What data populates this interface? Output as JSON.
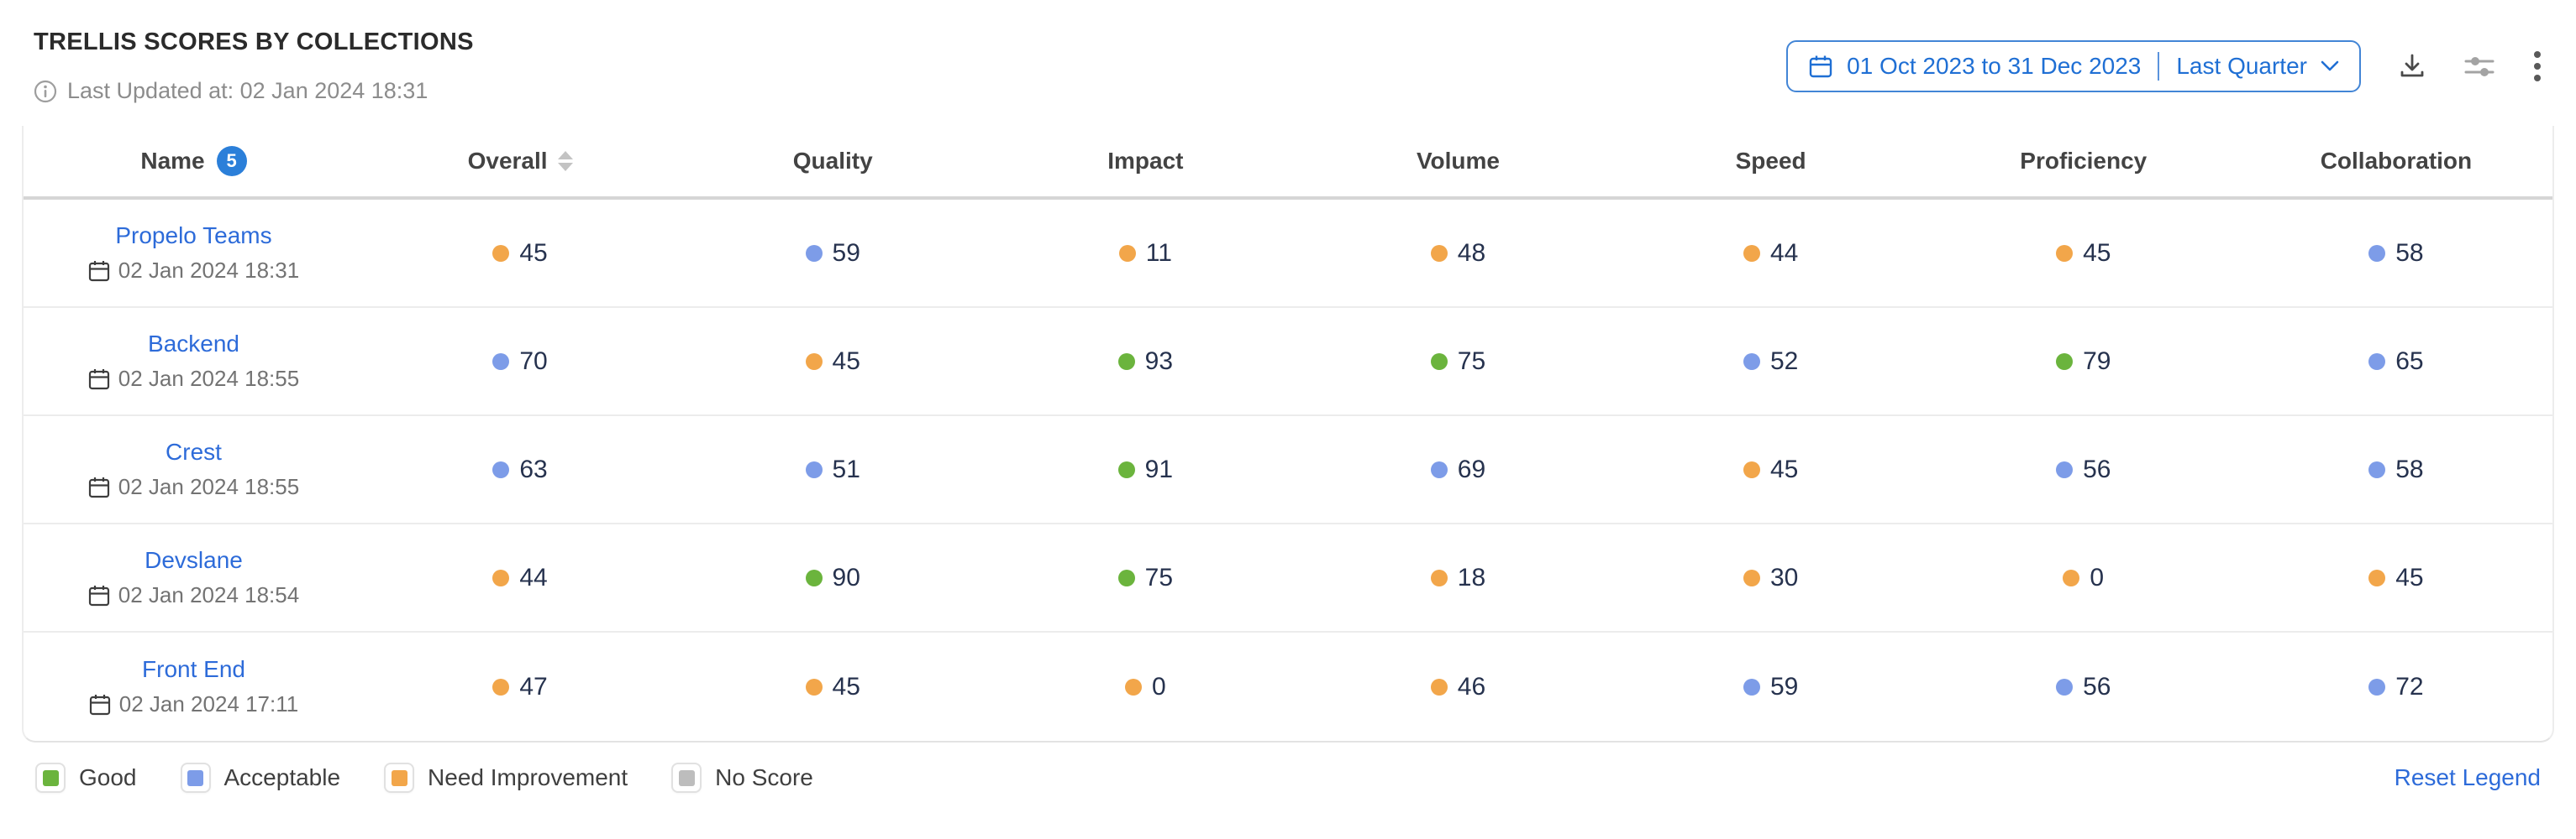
{
  "header": {
    "title": "TRELLIS SCORES BY COLLECTIONS",
    "last_updated": "Last Updated at: 02 Jan 2024 18:31",
    "date_filter": {
      "range": "01 Oct 2023 to 31 Dec 2023",
      "preset": "Last Quarter"
    },
    "icons": {
      "info": "info-icon",
      "calendar": "calendar-icon",
      "download": "download-icon",
      "filter": "sliders-icon",
      "more": "kebab-menu-icon"
    }
  },
  "table": {
    "name_column": {
      "label": "Name",
      "badge": "5"
    },
    "metric_columns": [
      {
        "label": "Overall",
        "sortable": true
      },
      {
        "label": "Quality"
      },
      {
        "label": "Impact"
      },
      {
        "label": "Volume"
      },
      {
        "label": "Speed"
      },
      {
        "label": "Proficiency"
      },
      {
        "label": "Collaboration"
      }
    ],
    "rows": [
      {
        "name": "Propelo Teams",
        "date": "02 Jan 2024 18:31",
        "scores": [
          {
            "value": 45,
            "level": "need_improvement"
          },
          {
            "value": 59,
            "level": "acceptable"
          },
          {
            "value": 11,
            "level": "need_improvement"
          },
          {
            "value": 48,
            "level": "need_improvement"
          },
          {
            "value": 44,
            "level": "need_improvement"
          },
          {
            "value": 45,
            "level": "need_improvement"
          },
          {
            "value": 58,
            "level": "acceptable"
          }
        ]
      },
      {
        "name": "Backend",
        "date": "02 Jan 2024 18:55",
        "scores": [
          {
            "value": 70,
            "level": "acceptable"
          },
          {
            "value": 45,
            "level": "need_improvement"
          },
          {
            "value": 93,
            "level": "good"
          },
          {
            "value": 75,
            "level": "good"
          },
          {
            "value": 52,
            "level": "acceptable"
          },
          {
            "value": 79,
            "level": "good"
          },
          {
            "value": 65,
            "level": "acceptable"
          }
        ]
      },
      {
        "name": "Crest",
        "date": "02 Jan 2024 18:55",
        "scores": [
          {
            "value": 63,
            "level": "acceptable"
          },
          {
            "value": 51,
            "level": "acceptable"
          },
          {
            "value": 91,
            "level": "good"
          },
          {
            "value": 69,
            "level": "acceptable"
          },
          {
            "value": 45,
            "level": "need_improvement"
          },
          {
            "value": 56,
            "level": "acceptable"
          },
          {
            "value": 58,
            "level": "acceptable"
          }
        ]
      },
      {
        "name": "Devslane",
        "date": "02 Jan 2024 18:54",
        "scores": [
          {
            "value": 44,
            "level": "need_improvement"
          },
          {
            "value": 90,
            "level": "good"
          },
          {
            "value": 75,
            "level": "good"
          },
          {
            "value": 18,
            "level": "need_improvement"
          },
          {
            "value": 30,
            "level": "need_improvement"
          },
          {
            "value": 0,
            "level": "need_improvement"
          },
          {
            "value": 45,
            "level": "need_improvement"
          }
        ]
      },
      {
        "name": "Front End",
        "date": "02 Jan 2024 17:11",
        "scores": [
          {
            "value": 47,
            "level": "need_improvement"
          },
          {
            "value": 45,
            "level": "need_improvement"
          },
          {
            "value": 0,
            "level": "need_improvement"
          },
          {
            "value": 46,
            "level": "need_improvement"
          },
          {
            "value": 59,
            "level": "acceptable"
          },
          {
            "value": 56,
            "level": "acceptable"
          },
          {
            "value": 72,
            "level": "acceptable"
          }
        ]
      }
    ]
  },
  "legend": {
    "items": [
      {
        "label": "Good",
        "level": "good"
      },
      {
        "label": "Acceptable",
        "level": "acceptable"
      },
      {
        "label": "Need Improvement",
        "level": "need_improvement"
      },
      {
        "label": "No Score",
        "level": "no_score"
      }
    ],
    "reset_label": "Reset Legend"
  },
  "colors": {
    "good": "#6bb43d",
    "acceptable": "#7d9ce8",
    "need_improvement": "#f2a64a",
    "no_score": "#bdbdbd",
    "link": "#2d6bd9",
    "accent": "#1f6fd4",
    "score_text": "#26324e"
  }
}
